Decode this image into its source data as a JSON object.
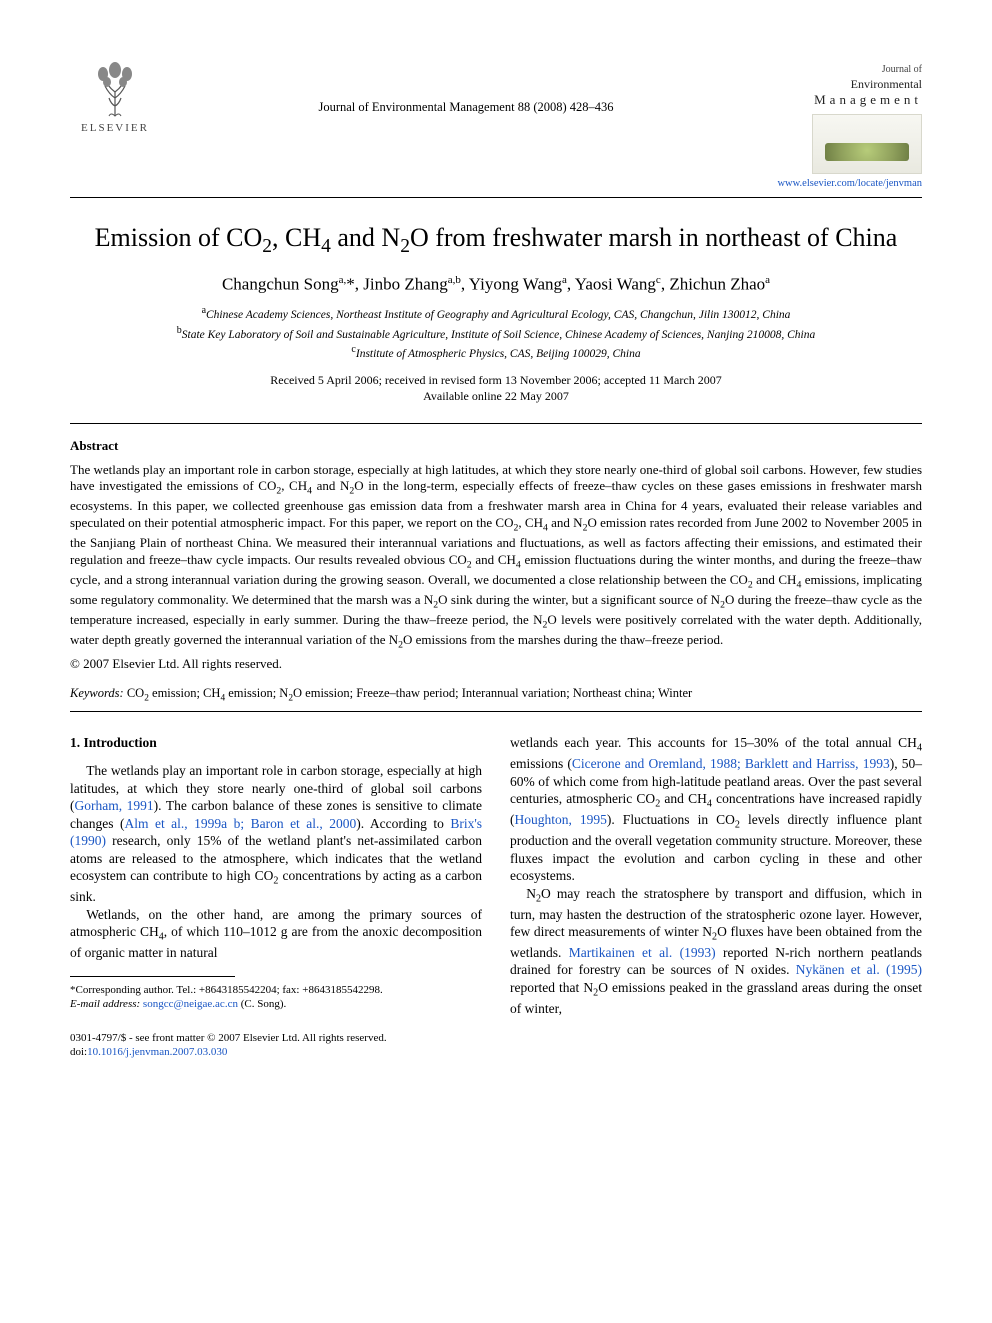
{
  "publisher": {
    "name": "ELSEVIER",
    "logo_color": "#e87722"
  },
  "journal_ref": "Journal of Environmental Management 88 (2008) 428–436",
  "mini_header": {
    "journal_of": "Journal of",
    "environmental": "Environmental",
    "management": "Management"
  },
  "homepage_url": "www.elsevier.com/locate/jenvman",
  "title_html": "Emission of CO<sub>2</sub>, CH<sub>4</sub> and N<sub>2</sub>O from freshwater marsh in northeast of China",
  "authors_html": "Changchun Song<sup>a,</sup>*, Jinbo Zhang<sup>a,b</sup>, Yiyong Wang<sup>a</sup>, Yaosi Wang<sup>c</sup>, Zhichun Zhao<sup>a</sup>",
  "affiliations": {
    "a": "Chinese Academy Sciences, Northeast Institute of Geography and Agricultural Ecology, CAS, Changchun, Jilin 130012, China",
    "b": "State Key Laboratory of Soil and Sustainable Agriculture, Institute of Soil Science, Chinese Academy of Sciences, Nanjing 210008, China",
    "c": "Institute of Atmospheric Physics, CAS, Beijing 100029, China"
  },
  "dates": {
    "line1": "Received 5 April 2006; received in revised form 13 November 2006; accepted 11 March 2007",
    "line2": "Available online 22 May 2007"
  },
  "abstract": {
    "heading": "Abstract",
    "body_html": "The wetlands play an important role in carbon storage, especially at high latitudes, at which they store nearly one-third of global soil carbons. However, few studies have investigated the emissions of CO<sub>2</sub>, CH<sub>4</sub> and N<sub>2</sub>O in the long-term, especially effects of freeze–thaw cycles on these gases emissions in freshwater marsh ecosystems. In this paper, we collected greenhouse gas emission data from a freshwater marsh area in China for 4 years, evaluated their release variables and speculated on their potential atmospheric impact. For this paper, we report on the CO<sub>2</sub>, CH<sub>4</sub> and N<sub>2</sub>O emission rates recorded from June 2002 to November 2005 in the Sanjiang Plain of northeast China. We measured their interannual variations and fluctuations, as well as factors affecting their emissions, and estimated their regulation and freeze–thaw cycle impacts. Our results revealed obvious CO<sub>2</sub> and CH<sub>4</sub> emission fluctuations during the winter months, and during the freeze–thaw cycle, and a strong interannual variation during the growing season. Overall, we documented a close relationship between the CO<sub>2</sub> and CH<sub>4</sub> emissions, implicating some regulatory commonality. We determined that the marsh was a N<sub>2</sub>O sink during the winter, but a significant source of N<sub>2</sub>O during the freeze–thaw cycle as the temperature increased, especially in early summer. During the thaw–freeze period, the N<sub>2</sub>O levels were positively correlated with the water depth. Additionally, water depth greatly governed the interannual variation of the N<sub>2</sub>O emissions from the marshes during the thaw–freeze period.",
    "copyright": "© 2007 Elsevier Ltd. All rights reserved."
  },
  "keywords": {
    "label": "Keywords:",
    "text_html": "CO<sub>2</sub> emission; CH<sub>4</sub> emission; N<sub>2</sub>O emission; Freeze–thaw period; Interannual variation; Northeast china; Winter"
  },
  "introduction": {
    "heading": "1. Introduction",
    "left_col_html": "<p class=\"para\">The wetlands play an important role in carbon storage, especially at high latitudes, at which they store nearly one-third of global soil carbons (<span class=\"citation\">Gorham, 1991</span>). The carbon balance of these zones is sensitive to climate changes (<span class=\"citation\">Alm et al., 1999a b; Baron et al., 2000</span>). According to <span class=\"citation\">Brix's (1990)</span> research, only 15% of the wetland plant's net-assimilated carbon atoms are released to the atmosphere, which indicates that the wetland ecosystem can contribute to high CO<sub>2</sub> concentrations by acting as a carbon sink.</p><p class=\"para\">Wetlands, on the other hand, are among the primary sources of atmospheric CH<sub>4</sub>, of which 110–1012 g are from the anoxic decomposition of organic matter in natural</p>",
    "right_col_html": "<p>wetlands each year. This accounts for 15–30% of the total annual CH<sub>4</sub> emissions (<span class=\"citation\">Cicerone and Oremland, 1988; Barklett and Harriss, 1993</span>), 50–60% of which come from high-latitude peatland areas. Over the past several centuries, atmospheric CO<sub>2</sub> and CH<sub>4</sub> concentrations have increased rapidly (<span class=\"citation\">Houghton, 1995</span>). Fluctuations in CO<sub>2</sub> levels directly influence plant production and the overall vegetation community structure. Moreover, these fluxes impact the evolution and carbon cycling in these and other ecosystems.</p><p class=\"para\">N<sub>2</sub>O may reach the stratosphere by transport and diffusion, which in turn, may hasten the destruction of the stratospheric ozone layer. However, few direct measurements of winter N<sub>2</sub>O fluxes have been obtained from the wetlands. <span class=\"citation\">Martikainen et al. (1993)</span> reported N-rich northern peatlands drained for forestry can be sources of N oxides. <span class=\"citation\">Nykänen et al. (1995)</span> reported that N<sub>2</sub>O emissions peaked in the grassland areas during the onset of winter,</p>"
  },
  "footnote": {
    "corresponding_html": "*Corresponding author. Tel.: +8643185542204; fax: +8643185542298.",
    "email_label": "E-mail address:",
    "email": "songcc@neigae.ac.cn",
    "email_suffix": "(C. Song)."
  },
  "footer": {
    "line1": "0301-4797/$ - see front matter © 2007 Elsevier Ltd. All rights reserved.",
    "doi_label": "doi:",
    "doi": "10.1016/j.jenvman.2007.03.030"
  },
  "colors": {
    "link": "#1a56c4",
    "text": "#000000",
    "logo_orange": "#e87722"
  }
}
